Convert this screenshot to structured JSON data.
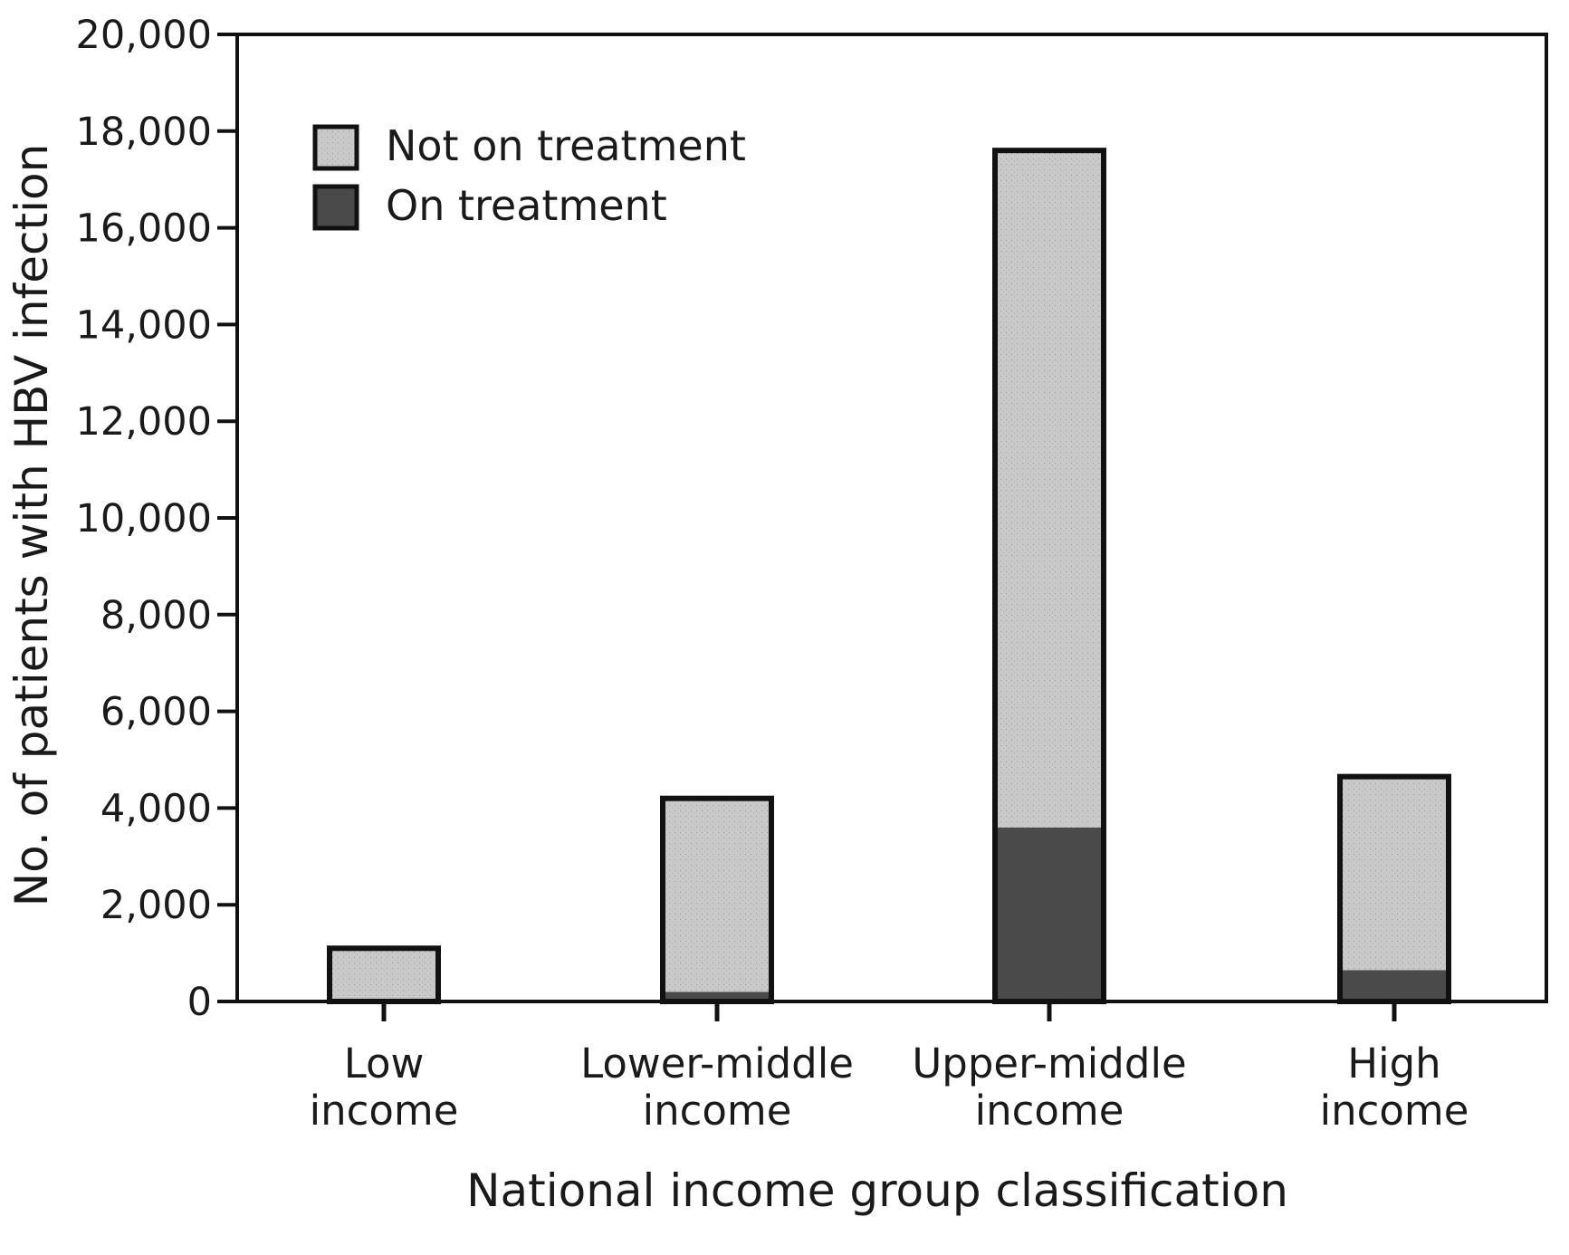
{
  "chart_data": {
    "type": "bar",
    "stacked": true,
    "title": "",
    "xlabel": "National income group classification",
    "ylabel": "No. of patients with HBV infection",
    "ylim": [
      0,
      20000
    ],
    "yticks": [
      0,
      2000,
      4000,
      6000,
      8000,
      10000,
      12000,
      14000,
      16000,
      18000,
      20000
    ],
    "ytick_labels": [
      "0",
      "2,000",
      "4,000",
      "6,000",
      "8,000",
      "10,000",
      "12,000",
      "14,000",
      "16,000",
      "18,000",
      "20,000"
    ],
    "categories": [
      [
        "Low",
        "income"
      ],
      [
        "Lower-middle",
        "income"
      ],
      [
        "Upper-middle",
        "income"
      ],
      [
        "High",
        "income"
      ]
    ],
    "series": [
      {
        "name": "On treatment",
        "values": [
          60,
          200,
          3600,
          650
        ],
        "color": "#4a4a4a"
      },
      {
        "name": "Not on treatment",
        "values": [
          1040,
          4000,
          14000,
          4000
        ],
        "color": "#c9c9c9"
      }
    ],
    "legend": {
      "position": "top-left",
      "order": [
        "Not on treatment",
        "On treatment"
      ]
    },
    "grid": false
  }
}
